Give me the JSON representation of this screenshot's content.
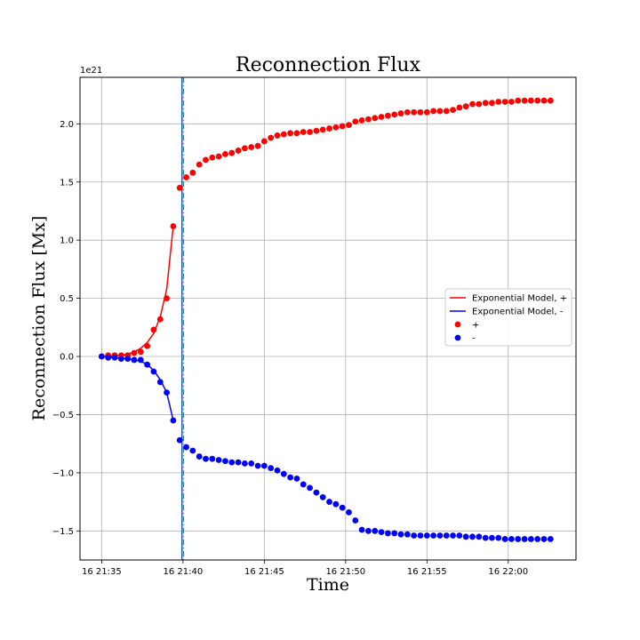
{
  "chart_data": {
    "type": "scatter",
    "title": "Reconnection Flux",
    "xlabel": "Time",
    "ylabel": "Reconnection Flux [Mx]",
    "y_offset_label": "1e21",
    "xlim": [
      "16 21:33:40",
      "16 22:04:10"
    ],
    "ylim": [
      -1.75,
      2.4
    ],
    "grid": true,
    "legend_position": "center-right",
    "x_ticks": [
      "16 21:35",
      "16 21:40",
      "16 21:45",
      "16 21:50",
      "16 21:55",
      "16 22:00"
    ],
    "y_ticks": [
      "−1.5",
      "−1.0",
      "−0.5",
      "0.0",
      "0.5",
      "1.0",
      "1.5",
      "2.0"
    ],
    "vertical_lines": [
      "16 21:39:56",
      "16 21:40:02"
    ],
    "vertical_line_colors": [
      "#1f4fb4",
      "#2e8b57"
    ],
    "legend": [
      {
        "label": "Exponential Model, +",
        "kind": "line",
        "color": "#ff0000"
      },
      {
        "label": "Exponential Model, -",
        "kind": "line",
        "color": "#0000ff"
      },
      {
        "label": "+",
        "kind": "marker",
        "color": "#ff0000"
      },
      {
        "label": "-",
        "kind": "marker",
        "color": "#0000ff"
      }
    ],
    "series": [
      {
        "name": "+",
        "color": "#ff0000",
        "x": [
          "16 21:35:00",
          "16 21:35:24",
          "16 21:35:48",
          "16 21:36:12",
          "16 21:36:36",
          "16 21:37:00",
          "16 21:37:24",
          "16 21:37:48",
          "16 21:38:12",
          "16 21:38:36",
          "16 21:39:00",
          "16 21:39:24",
          "16 21:39:48",
          "16 21:40:12",
          "16 21:40:36",
          "16 21:41:00",
          "16 21:41:24",
          "16 21:41:48",
          "16 21:42:12",
          "16 21:42:36",
          "16 21:43:00",
          "16 21:43:24",
          "16 21:43:48",
          "16 21:44:12",
          "16 21:44:36",
          "16 21:45:00",
          "16 21:45:24",
          "16 21:45:48",
          "16 21:46:12",
          "16 21:46:36",
          "16 21:47:00",
          "16 21:47:24",
          "16 21:47:48",
          "16 21:48:12",
          "16 21:48:36",
          "16 21:49:00",
          "16 21:49:24",
          "16 21:49:48",
          "16 21:50:12",
          "16 21:50:36",
          "16 21:51:00",
          "16 21:51:24",
          "16 21:51:48",
          "16 21:52:12",
          "16 21:52:36",
          "16 21:53:00",
          "16 21:53:24",
          "16 21:53:48",
          "16 21:54:12",
          "16 21:54:36",
          "16 21:55:00",
          "16 21:55:24",
          "16 21:55:48",
          "16 21:56:12",
          "16 21:56:36",
          "16 21:57:00",
          "16 21:57:24",
          "16 21:57:48",
          "16 21:58:12",
          "16 21:58:36",
          "16 21:59:00",
          "16 21:59:24",
          "16 21:59:48",
          "16 22:00:12",
          "16 22:00:36",
          "16 22:01:00",
          "16 22:01:24",
          "16 22:01:48",
          "16 22:02:12",
          "16 22:02:36"
        ],
        "values": [
          0.0,
          0.01,
          0.01,
          0.01,
          0.01,
          0.03,
          0.04,
          0.09,
          0.23,
          0.32,
          0.5,
          1.12,
          1.45,
          1.54,
          1.58,
          1.65,
          1.69,
          1.71,
          1.72,
          1.74,
          1.75,
          1.77,
          1.79,
          1.8,
          1.81,
          1.85,
          1.88,
          1.9,
          1.91,
          1.92,
          1.92,
          1.93,
          1.93,
          1.94,
          1.95,
          1.96,
          1.97,
          1.98,
          1.99,
          2.02,
          2.03,
          2.04,
          2.05,
          2.06,
          2.07,
          2.08,
          2.09,
          2.1,
          2.1,
          2.1,
          2.1,
          2.11,
          2.11,
          2.11,
          2.12,
          2.14,
          2.15,
          2.17,
          2.17,
          2.18,
          2.18,
          2.19,
          2.19,
          2.19,
          2.2,
          2.2,
          2.2,
          2.2,
          2.2,
          2.2
        ]
      },
      {
        "name": "-",
        "color": "#0000ff",
        "x": [
          "16 21:35:00",
          "16 21:35:24",
          "16 21:35:48",
          "16 21:36:12",
          "16 21:36:36",
          "16 21:37:00",
          "16 21:37:24",
          "16 21:37:48",
          "16 21:38:12",
          "16 21:38:36",
          "16 21:39:00",
          "16 21:39:24",
          "16 21:39:48",
          "16 21:40:12",
          "16 21:40:36",
          "16 21:41:00",
          "16 21:41:24",
          "16 21:41:48",
          "16 21:42:12",
          "16 21:42:36",
          "16 21:43:00",
          "16 21:43:24",
          "16 21:43:48",
          "16 21:44:12",
          "16 21:44:36",
          "16 21:45:00",
          "16 21:45:24",
          "16 21:45:48",
          "16 21:46:12",
          "16 21:46:36",
          "16 21:47:00",
          "16 21:47:24",
          "16 21:47:48",
          "16 21:48:12",
          "16 21:48:36",
          "16 21:49:00",
          "16 21:49:24",
          "16 21:49:48",
          "16 21:50:12",
          "16 21:50:36",
          "16 21:51:00",
          "16 21:51:24",
          "16 21:51:48",
          "16 21:52:12",
          "16 21:52:36",
          "16 21:53:00",
          "16 21:53:24",
          "16 21:53:48",
          "16 21:54:12",
          "16 21:54:36",
          "16 21:55:00",
          "16 21:55:24",
          "16 21:55:48",
          "16 21:56:12",
          "16 21:56:36",
          "16 21:57:00",
          "16 21:57:24",
          "16 21:57:48",
          "16 21:58:12",
          "16 21:58:36",
          "16 21:59:00",
          "16 21:59:24",
          "16 21:59:48",
          "16 22:00:12",
          "16 22:00:36",
          "16 22:01:00",
          "16 22:01:24",
          "16 22:01:48",
          "16 22:02:12",
          "16 22:02:36"
        ],
        "values": [
          0.0,
          -0.01,
          -0.01,
          -0.02,
          -0.02,
          -0.03,
          -0.03,
          -0.07,
          -0.13,
          -0.22,
          -0.31,
          -0.55,
          -0.72,
          -0.78,
          -0.81,
          -0.86,
          -0.88,
          -0.88,
          -0.89,
          -0.9,
          -0.91,
          -0.91,
          -0.92,
          -0.92,
          -0.94,
          -0.94,
          -0.96,
          -0.98,
          -1.01,
          -1.04,
          -1.05,
          -1.1,
          -1.13,
          -1.17,
          -1.21,
          -1.25,
          -1.27,
          -1.3,
          -1.34,
          -1.41,
          -1.49,
          -1.5,
          -1.5,
          -1.51,
          -1.52,
          -1.52,
          -1.53,
          -1.53,
          -1.54,
          -1.54,
          -1.54,
          -1.54,
          -1.54,
          -1.54,
          -1.54,
          -1.54,
          -1.55,
          -1.55,
          -1.55,
          -1.56,
          -1.56,
          -1.56,
          -1.57,
          -1.57,
          -1.57,
          -1.57,
          -1.57,
          -1.57,
          -1.57,
          -1.57
        ]
      }
    ],
    "model_curves": [
      {
        "name": "Exponential Model, +",
        "color": "#ff0000",
        "x": [
          "16 21:35:00",
          "16 21:35:24",
          "16 21:35:48",
          "16 21:36:12",
          "16 21:36:36",
          "16 21:37:00",
          "16 21:37:24",
          "16 21:37:48",
          "16 21:38:12",
          "16 21:38:36",
          "16 21:39:00",
          "16 21:39:24"
        ],
        "values": [
          0.0,
          0.0,
          0.005,
          0.01,
          0.02,
          0.04,
          0.07,
          0.12,
          0.2,
          0.34,
          0.58,
          1.12
        ]
      },
      {
        "name": "Exponential Model, -",
        "color": "#0000ff",
        "x": [
          "16 21:35:00",
          "16 21:35:24",
          "16 21:35:48",
          "16 21:36:12",
          "16 21:36:36",
          "16 21:37:00",
          "16 21:37:24",
          "16 21:37:48",
          "16 21:38:12",
          "16 21:38:36",
          "16 21:39:00",
          "16 21:39:24"
        ],
        "values": [
          0.0,
          -0.005,
          -0.01,
          -0.015,
          -0.02,
          -0.03,
          -0.04,
          -0.07,
          -0.12,
          -0.2,
          -0.31,
          -0.55
        ]
      }
    ]
  }
}
